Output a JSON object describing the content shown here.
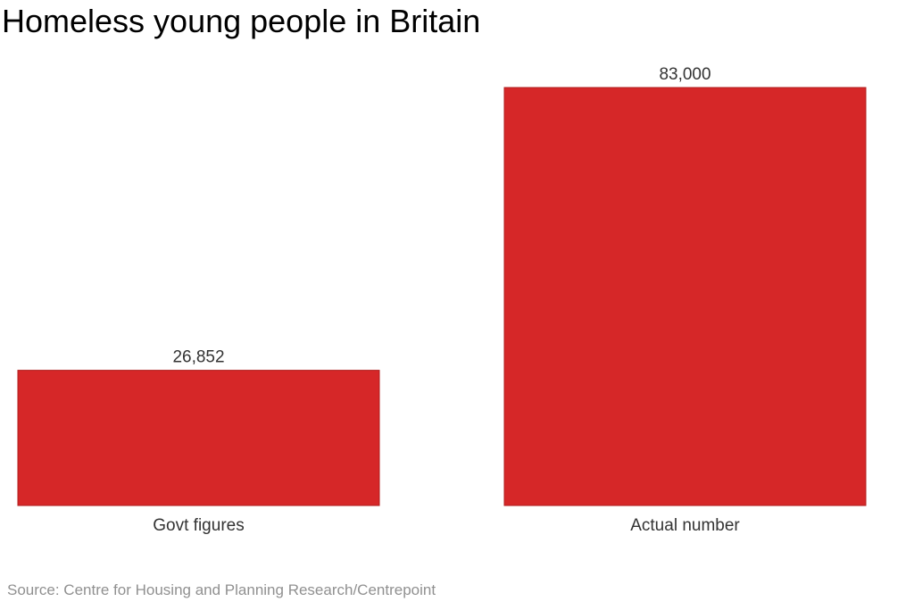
{
  "chart_data": {
    "type": "bar",
    "title": "Homeless young people in Britain",
    "categories": [
      "Govt figures",
      "Actual number"
    ],
    "values": [
      26852,
      83000
    ],
    "data_labels": [
      "26,852",
      "83,000"
    ],
    "xlabel": "",
    "ylabel": "",
    "ylim": [
      0,
      83000
    ],
    "grid": false,
    "legend": "none",
    "source": "Source: Centre for Housing and Planning Research/Centrepoint",
    "colors": {
      "bar_fill": "#d62728",
      "bar_stroke": "#b01e1e"
    }
  }
}
